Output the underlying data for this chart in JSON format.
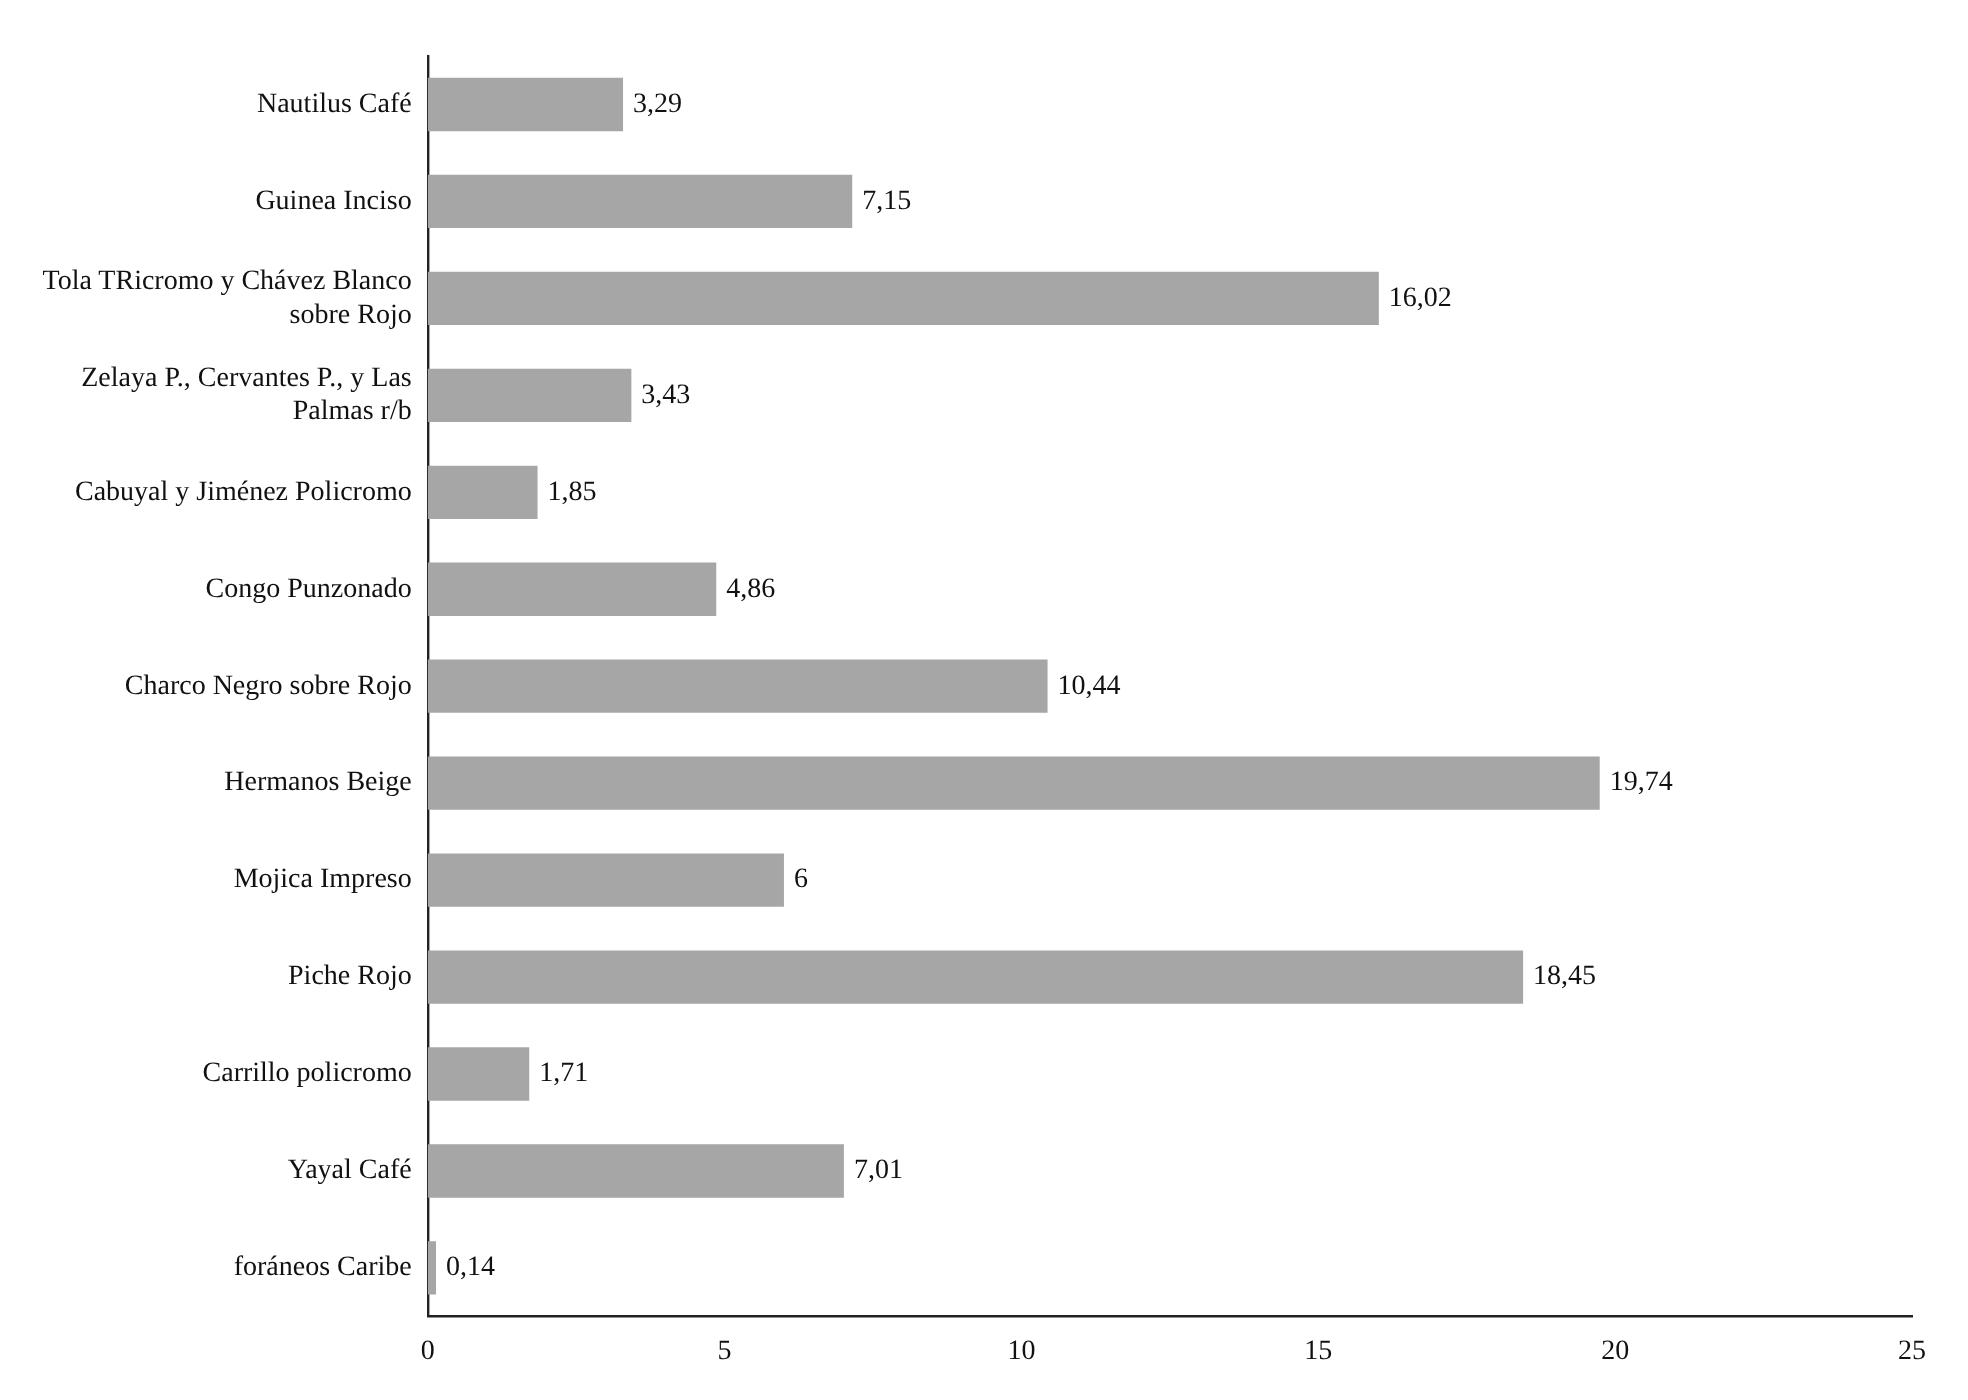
{
  "chart_data": {
    "type": "bar",
    "orientation": "horizontal",
    "categories": [
      "Nautilus Café",
      "Guinea Inciso",
      "Tola TRicromo y Chávez Blanco sobre Rojo",
      "Zelaya P., Cervantes P., y Las Palmas r/b",
      "Cabuyal y Jiménez Policromo",
      "Congo Punzonado",
      "Charco Negro sobre Rojo",
      "Hermanos Beige",
      "Mojica Impreso",
      "Piche Rojo",
      "Carrillo policromo",
      "Yayal Café",
      "foráneos Caribe"
    ],
    "values": [
      3.29,
      7.15,
      16.02,
      3.43,
      1.85,
      4.86,
      10.44,
      19.74,
      6,
      18.45,
      1.71,
      7.01,
      0.14
    ],
    "value_labels": [
      "3,29",
      "7,15",
      "16,02",
      "3,43",
      "1,85",
      "4,86",
      "10,44",
      "19,74",
      "6",
      "18,45",
      "1,71",
      "7,01",
      "0,14"
    ],
    "color": "#a6a6a6",
    "xlim": [
      0,
      25
    ],
    "xticks": [
      0,
      5,
      10,
      15,
      20,
      25
    ],
    "grid": false,
    "legend": false
  }
}
